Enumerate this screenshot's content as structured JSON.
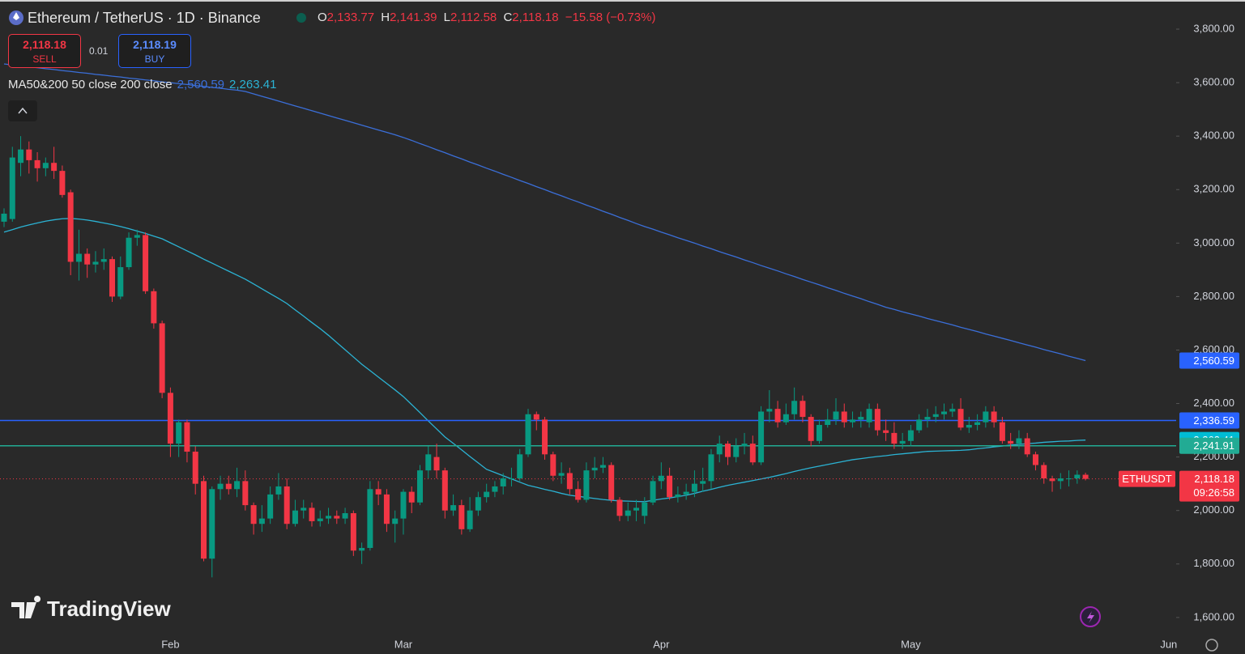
{
  "header": {
    "title": "Ethereum / TetherUS · 1D · Binance",
    "ohlc": [
      {
        "key": "O",
        "value": "2,133.77"
      },
      {
        "key": "H",
        "value": "2,141.39"
      },
      {
        "key": "L",
        "value": "2,112.58"
      },
      {
        "key": "C",
        "value": "2,118.18"
      }
    ],
    "change": "−15.58 (−0.73%)",
    "sell": {
      "price": "2,118.18",
      "label": "SELL"
    },
    "spread": "0.01",
    "buy": {
      "price": "2,118.19",
      "label": "BUY"
    },
    "indicator": "MA50&200 50 close 200 close",
    "logo": "TradingView"
  },
  "chart_data": {
    "type": "candlestick",
    "up_color": "#089981",
    "down_color": "#f23645",
    "categories": [
      null,
      null,
      null,
      null,
      null,
      null,
      null,
      null,
      null,
      null,
      null,
      null,
      null,
      null,
      null,
      null,
      null,
      null,
      null,
      null,
      "Feb",
      null,
      null,
      null,
      null,
      null,
      null,
      null,
      null,
      null,
      null,
      null,
      null,
      null,
      null,
      null,
      null,
      null,
      null,
      null,
      null,
      null,
      null,
      null,
      null,
      null,
      null,
      null,
      "Mar",
      null,
      null,
      null,
      null,
      null,
      null,
      null,
      null,
      null,
      null,
      null,
      null,
      null,
      null,
      null,
      null,
      null,
      null,
      null,
      null,
      null,
      null,
      null,
      null,
      null,
      null,
      null,
      null,
      null,
      null,
      "Apr",
      null,
      null,
      null,
      null,
      null,
      null,
      null,
      null,
      null,
      null,
      null,
      null,
      null,
      null,
      null,
      null,
      null,
      null,
      null,
      null,
      null,
      null,
      null,
      null,
      null,
      null,
      null,
      null,
      null,
      "May",
      null,
      null,
      null,
      null,
      null,
      null,
      null,
      null,
      null,
      null,
      null,
      null,
      null,
      null,
      null,
      null,
      null,
      null,
      null,
      null,
      null,
      null,
      null,
      null,
      null,
      null,
      null,
      null,
      null,
      null,
      "Jun"
    ],
    "open": [
      3080,
      3090,
      3300,
      3350,
      3310,
      3280,
      3300,
      3270,
      3190,
      2930,
      2960,
      2920,
      2930,
      2940,
      2800,
      2910,
      3020,
      3030,
      2820,
      2700,
      2440,
      2250,
      2330,
      2220,
      2110,
      1820,
      2080,
      2100,
      2080,
      2110,
      2020,
      1950,
      1970,
      2060,
      2090,
      1950,
      2000,
      2010,
      1960,
      1970,
      1980,
      1970,
      1990,
      1850,
      1860,
      2080,
      2060,
      1950,
      1970,
      2070,
      2030,
      2150,
      2200,
      2150,
      2000,
      2020,
      1930,
      2000,
      2050,
      2070,
      2090,
      2120,
      2120,
      2210,
      2360,
      2340,
      2210,
      2130,
      2140,
      2080,
      2040,
      2150,
      2160,
      2170,
      2040,
      1980,
      2000,
      1980,
      2030,
      2110,
      2130,
      2050,
      2060,
      2070,
      2100,
      2110,
      2210,
      2250,
      2200,
      2240,
      2250,
      2180,
      2370,
      2380,
      2330,
      2360,
      2410,
      2350,
      2260,
      2320,
      2340,
      2370,
      2330,
      2340,
      2330,
      2380,
      2300,
      2290,
      2250,
      2260,
      2300,
      2340,
      2350,
      2360,
      2370,
      2380,
      2310,
      2320,
      2330,
      2370,
      2330,
      2260,
      2250,
      2270,
      2210,
      2170,
      2120,
      2110,
      2120,
      2120,
      2133.77,
      null,
      null,
      null,
      null,
      null,
      null,
      null,
      null,
      null,
      null
    ],
    "high": [
      3130,
      3360,
      3400,
      3380,
      3340,
      3320,
      3360,
      3290,
      3200,
      3050,
      2980,
      2970,
      2980,
      2950,
      2950,
      3040,
      3050,
      3040,
      2830,
      2710,
      2460,
      2340,
      2340,
      2240,
      2130,
      2090,
      2130,
      2130,
      2160,
      2150,
      2030,
      2020,
      2090,
      2140,
      2120,
      2040,
      2040,
      2030,
      2000,
      2010,
      2000,
      2010,
      2000,
      1880,
      2110,
      2110,
      2080,
      2000,
      2080,
      2090,
      2170,
      2240,
      2250,
      2160,
      2060,
      2040,
      2050,
      2070,
      2100,
      2110,
      2140,
      2160,
      2230,
      2380,
      2370,
      2350,
      2220,
      2180,
      2160,
      2110,
      2180,
      2200,
      2200,
      2180,
      2050,
      2030,
      2040,
      2050,
      2130,
      2180,
      2160,
      2090,
      2100,
      2150,
      2160,
      2230,
      2280,
      2260,
      2270,
      2290,
      2280,
      2390,
      2450,
      2410,
      2400,
      2460,
      2430,
      2360,
      2340,
      2380,
      2420,
      2400,
      2370,
      2370,
      2400,
      2400,
      2340,
      2330,
      2290,
      2320,
      2360,
      2380,
      2390,
      2400,
      2400,
      2420,
      2350,
      2360,
      2390,
      2390,
      2350,
      2290,
      2300,
      2290,
      2220,
      2180,
      2130,
      2140,
      2150,
      2150,
      2141.39,
      null,
      null,
      null,
      null,
      null,
      null,
      null,
      null,
      null,
      null
    ],
    "low": [
      3060,
      3080,
      3250,
      3260,
      3230,
      3250,
      3240,
      3170,
      2880,
      2860,
      2870,
      2890,
      2900,
      2780,
      2790,
      2900,
      2990,
      2810,
      2680,
      2420,
      2200,
      2200,
      2180,
      2060,
      1810,
      1750,
      2040,
      2060,
      2050,
      2000,
      1910,
      1920,
      1950,
      2040,
      1930,
      1940,
      1970,
      1940,
      1940,
      1950,
      1950,
      1950,
      1830,
      1800,
      1850,
      2020,
      1920,
      1880,
      1910,
      1990,
      2020,
      2120,
      2120,
      1970,
      1980,
      1910,
      1920,
      1980,
      2030,
      2050,
      2060,
      2090,
      2110,
      2200,
      2300,
      2190,
      2110,
      2100,
      2060,
      2030,
      2030,
      2120,
      2140,
      2030,
      1960,
      1960,
      1960,
      1950,
      2020,
      2080,
      2040,
      2030,
      2040,
      2050,
      2070,
      2080,
      2180,
      2170,
      2180,
      2210,
      2170,
      2170,
      2330,
      2310,
      2320,
      2340,
      2330,
      2240,
      2250,
      2310,
      2320,
      2310,
      2310,
      2310,
      2310,
      2280,
      2260,
      2230,
      2230,
      2240,
      2290,
      2310,
      2330,
      2340,
      2350,
      2300,
      2290,
      2300,
      2310,
      2310,
      2250,
      2230,
      2230,
      2200,
      2150,
      2100,
      2070,
      2080,
      2090,
      2100,
      2112.58,
      null,
      null,
      null,
      null,
      null,
      null,
      null,
      null,
      null,
      null
    ],
    "close": [
      3110,
      3320,
      3350,
      3310,
      3280,
      3300,
      3270,
      3180,
      2930,
      2960,
      2920,
      2930,
      2940,
      2800,
      2910,
      3020,
      3030,
      2820,
      2700,
      2440,
      2250,
      2330,
      2220,
      2100,
      1820,
      2080,
      2100,
      2080,
      2110,
      2020,
      1950,
      1970,
      2060,
      2090,
      1950,
      2000,
      2010,
      1960,
      1970,
      1980,
      1970,
      1990,
      1850,
      1860,
      2080,
      2060,
      1950,
      1970,
      2070,
      2030,
      2150,
      2210,
      2150,
      2000,
      2020,
      1930,
      2000,
      2050,
      2070,
      2090,
      2120,
      2120,
      2210,
      2360,
      2340,
      2210,
      2130,
      2140,
      2080,
      2040,
      2150,
      2160,
      2170,
      2040,
      1980,
      2000,
      2010,
      2030,
      2110,
      2130,
      2050,
      2060,
      2070,
      2100,
      2110,
      2210,
      2250,
      2200,
      2240,
      2250,
      2180,
      2370,
      2380,
      2330,
      2360,
      2410,
      2350,
      2260,
      2320,
      2340,
      2370,
      2330,
      2340,
      2350,
      2380,
      2300,
      2290,
      2250,
      2260,
      2300,
      2340,
      2350,
      2360,
      2370,
      2380,
      2310,
      2320,
      2330,
      2370,
      2330,
      2260,
      2250,
      2270,
      2210,
      2170,
      2120,
      2110,
      2120,
      2120,
      2133.77,
      2118.18,
      null,
      null,
      null,
      null,
      null,
      null,
      null,
      null,
      null,
      null
    ],
    "series": [
      {
        "color": "#3b6fd9",
        "last_label": "2,560.59",
        "values": [
          3670,
          3666,
          3663,
          3659,
          3656,
          3652,
          3649,
          3645,
          3642,
          3638,
          3635,
          3631,
          3628,
          3624,
          3621,
          3617,
          3614,
          3610,
          3607,
          3603,
          3600,
          3596,
          3593,
          3589,
          3586,
          3582,
          3579,
          3575,
          3572,
          3567,
          3558,
          3549,
          3540,
          3531,
          3522,
          3513,
          3504,
          3495,
          3486,
          3477,
          3468,
          3459,
          3450,
          3441,
          3432,
          3423,
          3414,
          3405,
          3395,
          3384,
          3372,
          3361,
          3349,
          3338,
          3326,
          3315,
          3303,
          3292,
          3280,
          3269,
          3257,
          3246,
          3234,
          3223,
          3211,
          3200,
          3188,
          3177,
          3165,
          3154,
          3142,
          3131,
          3119,
          3108,
          3096,
          3085,
          3073,
          3062,
          3052,
          3041,
          3031,
          3020,
          3010,
          3000,
          2989,
          2979,
          2968,
          2958,
          2948,
          2937,
          2927,
          2916,
          2906,
          2896,
          2885,
          2875,
          2864,
          2854,
          2844,
          2833,
          2823,
          2812,
          2802,
          2792,
          2781,
          2771,
          2760,
          2752,
          2743,
          2735,
          2727,
          2718,
          2710,
          2702,
          2694,
          2685,
          2677,
          2669,
          2660,
          2652,
          2644,
          2636,
          2627,
          2619,
          2611,
          2602,
          2594,
          2586,
          2577,
          2569,
          2560.59,
          null,
          null,
          null,
          null,
          null,
          null,
          null,
          null,
          null,
          null
        ]
      },
      {
        "color": "#2bb3d4",
        "last_label": "2,263.41",
        "values": [
          3041,
          3050,
          3060,
          3068,
          3075,
          3082,
          3087,
          3091,
          3092,
          3090,
          3086,
          3081,
          3075,
          3069,
          3062,
          3054,
          3045,
          3036,
          3026,
          3016,
          3001,
          2986,
          2971,
          2956,
          2940,
          2925,
          2910,
          2895,
          2880,
          2865,
          2847,
          2829,
          2811,
          2793,
          2774,
          2750,
          2727,
          2703,
          2680,
          2655,
          2628,
          2601,
          2574,
          2547,
          2523,
          2499,
          2475,
          2451,
          2426,
          2396,
          2366,
          2335,
          2305,
          2275,
          2251,
          2227,
          2202,
          2178,
          2154,
          2142,
          2130,
          2118,
          2106,
          2094,
          2087,
          2079,
          2072,
          2064,
          2057,
          2053,
          2049,
          2045,
          2041,
          2038,
          2036,
          2035,
          2034,
          2033,
          2038,
          2043,
          2047,
          2052,
          2057,
          2064,
          2072,
          2079,
          2087,
          2094,
          2100,
          2106,
          2112,
          2118,
          2124,
          2131,
          2138,
          2146,
          2153,
          2160,
          2166,
          2172,
          2178,
          2184,
          2190,
          2194,
          2198,
          2202,
          2205,
          2209,
          2212,
          2215,
          2218,
          2221,
          2222,
          2223,
          2224,
          2225,
          2227,
          2231,
          2234,
          2238,
          2241,
          2245,
          2247,
          2250,
          2252,
          2255,
          2257,
          2259,
          2260,
          2262,
          2263.41,
          null,
          null,
          null,
          null,
          null,
          null,
          null,
          null,
          null,
          null
        ]
      }
    ],
    "price_lines": [
      {
        "value": 2336.59,
        "label": "2,336.59",
        "color": "#2962ff"
      },
      {
        "value": 2241.91,
        "label": "2,241.91",
        "color": "#22ab94"
      }
    ],
    "last_price": {
      "value": 2118.18,
      "label": "2,118.18",
      "symbol": "ETHUSDT",
      "countdown": "09:26:58",
      "color": "#f23645"
    },
    "ylim": [
      1533,
      3909
    ],
    "yticks": [
      {
        "value": 1600,
        "label": "1,600.00"
      },
      {
        "value": 1800,
        "label": "1,800.00"
      },
      {
        "value": 2000,
        "label": "2,000.00"
      },
      {
        "value": 2200,
        "label": "2,200.00"
      },
      {
        "value": 2400,
        "label": "2,400.00"
      },
      {
        "value": 2600,
        "label": "2,600.00"
      },
      {
        "value": 2800,
        "label": "2,800.00"
      },
      {
        "value": 3000,
        "label": "3,000.00"
      },
      {
        "value": 3200,
        "label": "3,200.00"
      },
      {
        "value": 3400,
        "label": "3,400.00"
      },
      {
        "value": 3600,
        "label": "3,600.00"
      },
      {
        "value": 3800,
        "label": "3,800.00"
      }
    ],
    "grid": false
  }
}
